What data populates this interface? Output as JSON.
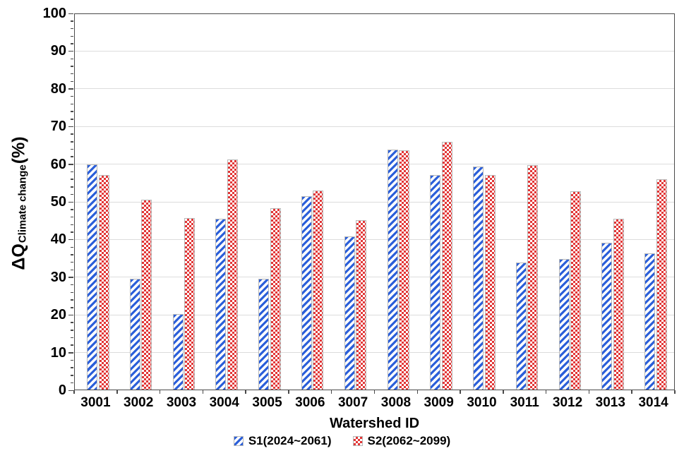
{
  "chart_data": {
    "type": "bar",
    "title": "",
    "xlabel": "Watershed ID",
    "ylabel_prefix": "ΔQ",
    "ylabel_subscript": "Climate change",
    "ylabel_suffix": "(%)",
    "ylim": [
      0,
      100
    ],
    "ytick_step": 10,
    "minor_tick_step": 2,
    "grid": "horizontal-major",
    "legend_position": "bottom-center",
    "categories": [
      "3001",
      "3002",
      "3003",
      "3004",
      "3005",
      "3006",
      "3007",
      "3008",
      "3009",
      "3010",
      "3011",
      "3012",
      "3013",
      "3014"
    ],
    "series": [
      {
        "name": "S1(2024~2061)",
        "pattern": "diagonal-stripe",
        "color": "#2B5FD9",
        "values": [
          59.7,
          29.4,
          20.0,
          45.3,
          29.4,
          51.3,
          40.6,
          63.6,
          56.9,
          59.2,
          33.7,
          34.7,
          38.9,
          36.2
        ]
      },
      {
        "name": "S2(2062~2099)",
        "pattern": "checkerboard",
        "color": "#E23636",
        "values": [
          57.0,
          50.3,
          45.6,
          61.1,
          48.1,
          52.8,
          45.0,
          63.4,
          65.7,
          56.9,
          59.5,
          52.6,
          45.4,
          55.9
        ]
      }
    ],
    "yticks": [
      0,
      10,
      20,
      30,
      40,
      50,
      60,
      70,
      80,
      90,
      100
    ],
    "colors": {
      "background": "#FFFFFF",
      "grid": "#DCDCDC",
      "axis": "#4A4A4A",
      "bar_border": "#B8B8B8",
      "text": "#000000"
    }
  }
}
